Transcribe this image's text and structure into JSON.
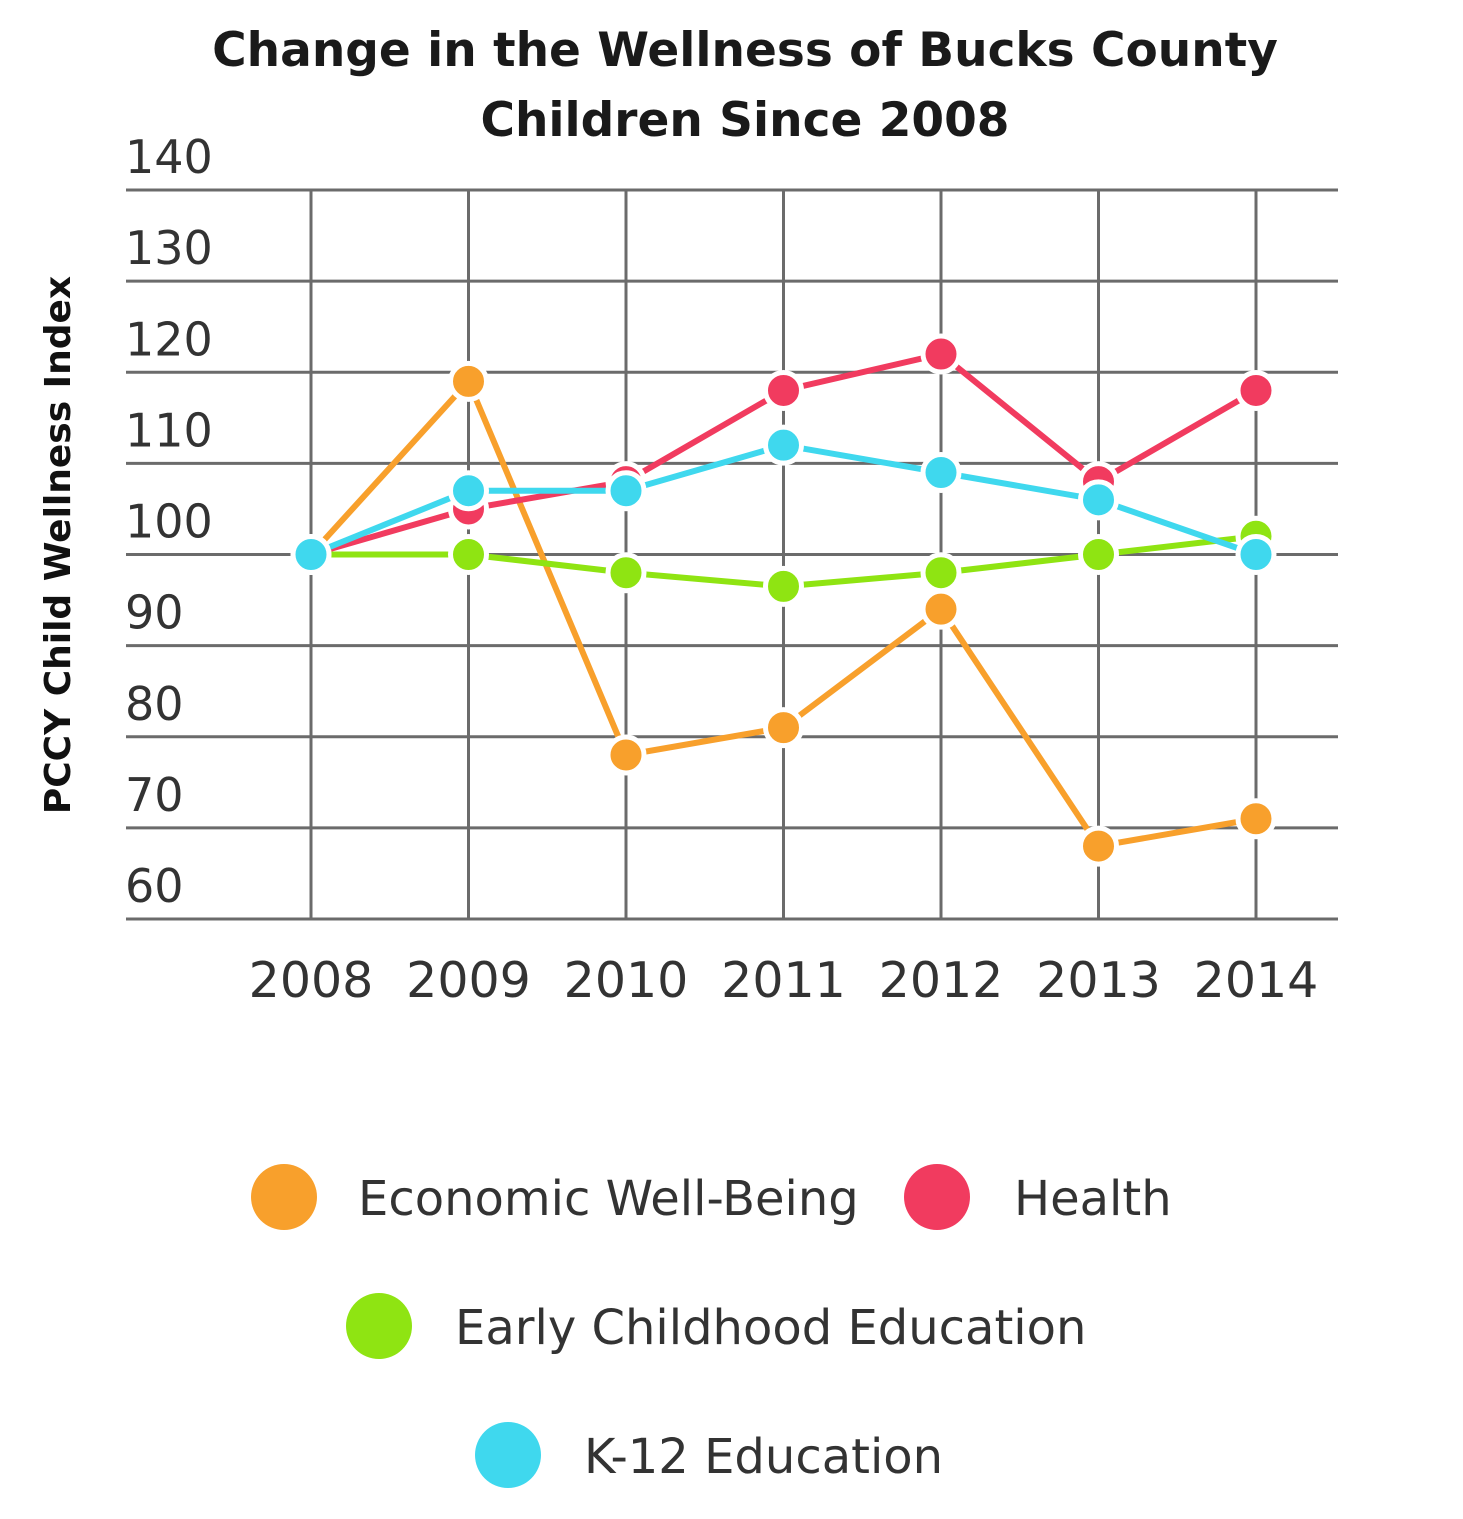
{
  "chart_data": {
    "type": "line",
    "title_lines": [
      "Change in the Wellness of Bucks County",
      "Children Since 2008"
    ],
    "ylabel": "PCCY Child Wellness Index",
    "xlabel": "",
    "categories": [
      "2008",
      "2009",
      "2010",
      "2011",
      "2012",
      "2013",
      "2014"
    ],
    "yticks": [
      "140",
      "130",
      "120",
      "110",
      "100",
      "90",
      "80",
      "70",
      "60"
    ],
    "ylim": [
      60,
      140
    ],
    "grid": true,
    "legend_position": "bottom",
    "series": [
      {
        "name": "Economic Well-Being",
        "color": "#f8a02c",
        "values": [
          100,
          119,
          78,
          81,
          94,
          68,
          71
        ]
      },
      {
        "name": "Health",
        "color": "#f13b5f",
        "values": [
          100,
          105,
          108,
          118,
          122,
          108,
          118
        ]
      },
      {
        "name": "Early Childhood Education",
        "color": "#8fe412",
        "values": [
          100,
          100,
          98,
          96.5,
          98,
          100,
          102
        ]
      },
      {
        "name": "K-12 Education",
        "color": "#3fd8ee",
        "values": [
          100,
          107,
          107,
          112,
          109,
          106,
          100
        ]
      }
    ]
  }
}
